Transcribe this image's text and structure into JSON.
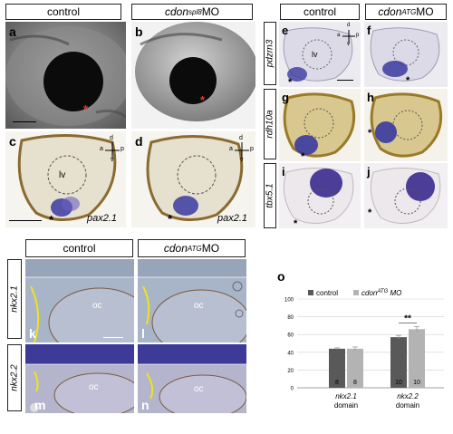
{
  "header_left": {
    "control": "control",
    "mo": {
      "base": "cdon",
      "sup": "spl8",
      "suffix": " MO"
    }
  },
  "header_right": {
    "control": "control",
    "mo": {
      "base": "cdon",
      "sup": "ATG",
      "suffix": " MO"
    }
  },
  "header_bottom": {
    "control": "control",
    "mo": {
      "base": "cdon",
      "sup": "ATG",
      "suffix": " MO"
    }
  },
  "panel_letters": [
    "a",
    "b",
    "c",
    "d",
    "e",
    "f",
    "g",
    "h",
    "i",
    "j",
    "k",
    "l",
    "m",
    "n",
    "o"
  ],
  "genes": {
    "pax2": "pax2.1",
    "pdzrn3": "pdzrn3",
    "rdh10a": "rdh10a",
    "tbx51": "tbx5.1",
    "nkx21": "nkx2.1",
    "nkx22": "nkx2.2"
  },
  "lv_label": "lv",
  "oc_label": "oc",
  "compass": {
    "d": "d",
    "v": "v",
    "a": "a",
    "p": "p"
  },
  "asterisk": "*",
  "colors": {
    "red_star": "#e03a2a",
    "yellow_line": "#f2e21a",
    "stain": "#4a3fa8"
  },
  "chart_data": {
    "type": "bar",
    "categories": [
      "nkx2.1 domain",
      "nkx2.2 domain"
    ],
    "category_lines": [
      [
        "nkx2.1",
        "domain"
      ],
      [
        "nkx2.2",
        "domain"
      ]
    ],
    "series": [
      {
        "name": "control",
        "values": [
          44,
          57
        ],
        "errors": [
          1,
          2
        ],
        "n": [
          "8",
          "10"
        ],
        "color": "#595959"
      },
      {
        "name": "cdonATG MO",
        "values": [
          44,
          66
        ],
        "errors": [
          2,
          3
        ],
        "n": [
          "8",
          "10"
        ],
        "color": "#b3b3b3"
      }
    ],
    "legend": {
      "control": "control",
      "mo_base": "cdon",
      "mo_sup": "ATG",
      "mo_suffix": " MO"
    },
    "ylim": [
      0,
      100
    ],
    "yticks": [
      0,
      20,
      40,
      60,
      80,
      100
    ],
    "significance": "**",
    "panel": "o"
  }
}
